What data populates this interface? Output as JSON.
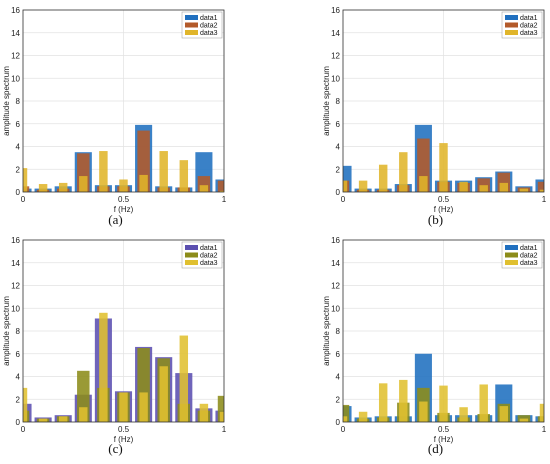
{
  "chart_data": [
    {
      "type": "bar",
      "caption": "(a)",
      "xlabel": "f (Hz)",
      "ylabel": "amplitude spectrum",
      "xlim": [
        0,
        1
      ],
      "ylim": [
        0,
        16
      ],
      "xticks": [
        "0",
        "0.5",
        "1"
      ],
      "yticks": [
        "0",
        "2",
        "4",
        "6",
        "8",
        "10",
        "12",
        "14",
        "16"
      ],
      "grid": true,
      "legend_position": "top-right",
      "x": [
        0.0,
        0.1,
        0.2,
        0.3,
        0.4,
        0.5,
        0.6,
        0.7,
        0.8,
        0.9,
        1.0
      ],
      "series": [
        {
          "name": "data1",
          "color": "#1f6fbf",
          "values": [
            0.3,
            0.3,
            0.5,
            3.5,
            0.6,
            0.6,
            5.9,
            0.5,
            0.4,
            3.5,
            1.1
          ]
        },
        {
          "name": "data2",
          "color": "#b35a2a",
          "values": [
            0.5,
            0.2,
            0.3,
            3.4,
            0.5,
            0.5,
            5.4,
            0.4,
            0.4,
            1.4,
            1.0
          ]
        },
        {
          "name": "data3",
          "color": "#e0b52a",
          "values": [
            2.1,
            0.7,
            0.8,
            1.4,
            3.6,
            1.1,
            1.5,
            3.6,
            2.8,
            0.6,
            0.1
          ]
        }
      ]
    },
    {
      "type": "bar",
      "caption": "(b)",
      "xlabel": "f (Hz)",
      "ylabel": "amplitude spectrum",
      "xlim": [
        0,
        1
      ],
      "ylim": [
        0,
        16
      ],
      "xticks": [
        "0",
        "0.5",
        "1"
      ],
      "yticks": [
        "0",
        "2",
        "4",
        "6",
        "8",
        "10",
        "12",
        "14",
        "16"
      ],
      "grid": true,
      "legend_position": "top-right",
      "x": [
        0.0,
        0.1,
        0.2,
        0.3,
        0.4,
        0.5,
        0.6,
        0.7,
        0.8,
        0.9,
        1.0
      ],
      "series": [
        {
          "name": "data1",
          "color": "#1f6fbf",
          "values": [
            2.3,
            0.3,
            0.3,
            0.7,
            5.9,
            1.0,
            1.0,
            1.3,
            1.8,
            0.5,
            1.1
          ]
        },
        {
          "name": "data2",
          "color": "#b35a2a",
          "values": [
            1.0,
            0.2,
            0.2,
            0.6,
            4.7,
            0.9,
            0.8,
            1.2,
            1.7,
            0.4,
            0.9
          ]
        },
        {
          "name": "data3",
          "color": "#e0b52a",
          "values": [
            1.0,
            1.0,
            2.4,
            3.5,
            1.4,
            4.3,
            0.9,
            0.6,
            0.8,
            0.3,
            0.2
          ]
        }
      ]
    },
    {
      "type": "bar",
      "caption": "(c)",
      "xlabel": "f (Hz)",
      "ylabel": "amplitude spectrum",
      "xlim": [
        0,
        1
      ],
      "ylim": [
        0,
        16
      ],
      "xticks": [
        "0",
        "0.5",
        "1"
      ],
      "yticks": [
        "0",
        "2",
        "4",
        "6",
        "8",
        "10",
        "12",
        "14",
        "16"
      ],
      "grid": true,
      "legend_position": "top-right",
      "x": [
        0.0,
        0.1,
        0.2,
        0.3,
        0.4,
        0.5,
        0.6,
        0.7,
        0.8,
        0.9,
        1.0
      ],
      "series": [
        {
          "name": "data1",
          "color": "#5b4fb0",
          "values": [
            1.6,
            0.4,
            0.6,
            2.4,
            9.1,
            2.7,
            6.6,
            5.7,
            4.3,
            1.2,
            1.0
          ]
        },
        {
          "name": "data2",
          "color": "#8c8c1a",
          "values": [
            1.0,
            0.3,
            0.5,
            4.5,
            3.0,
            2.6,
            6.5,
            5.6,
            1.6,
            1.0,
            2.3
          ]
        },
        {
          "name": "data3",
          "color": "#e0c030",
          "values": [
            3.0,
            0.3,
            0.5,
            1.3,
            9.6,
            2.6,
            2.6,
            4.9,
            7.6,
            1.6,
            0.9
          ]
        }
      ]
    },
    {
      "type": "bar",
      "caption": "(d)",
      "xlabel": "f (Hz)",
      "ylabel": "amplitude spectrum",
      "xlim": [
        0,
        1
      ],
      "ylim": [
        0,
        16
      ],
      "xticks": [
        "0",
        "0.5",
        "1"
      ],
      "yticks": [
        "0",
        "2",
        "4",
        "6",
        "8",
        "10",
        "12",
        "14",
        "16"
      ],
      "grid": true,
      "legend_position": "top-right",
      "x": [
        0.0,
        0.1,
        0.2,
        0.3,
        0.4,
        0.5,
        0.6,
        0.7,
        0.8,
        0.9,
        1.0
      ],
      "series": [
        {
          "name": "data1",
          "color": "#1f6fbf",
          "values": [
            1.4,
            0.4,
            0.5,
            0.5,
            6.0,
            0.6,
            0.6,
            0.6,
            3.3,
            0.6,
            0.5
          ]
        },
        {
          "name": "data2",
          "color": "#8c8c1a",
          "values": [
            1.5,
            0.3,
            0.4,
            1.7,
            3.0,
            0.8,
            0.4,
            0.7,
            1.6,
            0.6,
            0.5
          ]
        },
        {
          "name": "data3",
          "color": "#e0c030",
          "values": [
            0.5,
            0.9,
            3.4,
            3.7,
            1.8,
            3.2,
            1.3,
            3.3,
            1.4,
            0.3,
            1.6
          ]
        }
      ]
    }
  ]
}
